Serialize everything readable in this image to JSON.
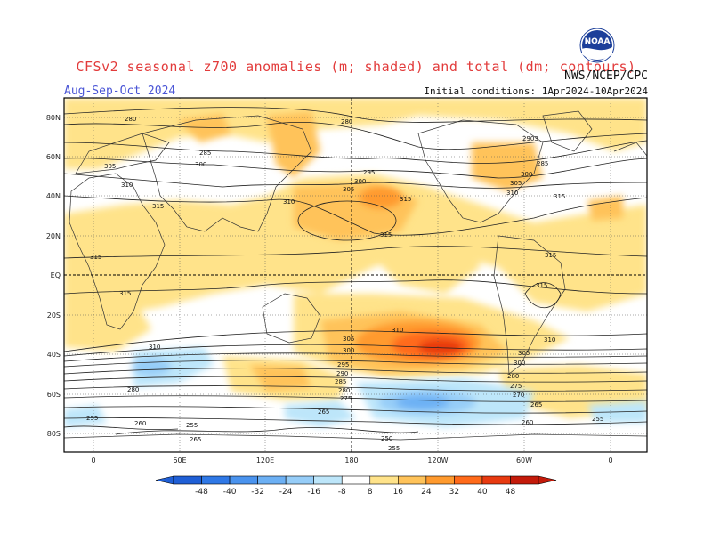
{
  "title": "CFSv2 seasonal z700 anomalies (m; shaded) and total (dm; contours)",
  "period": "Aug-Sep-Oct 2024",
  "initial_conditions": "Initial conditions: 1Apr2024-10Apr2024",
  "agency": "NWS/NCEP/CPC",
  "logo_text": "NOAA",
  "lat_labels": [
    "80N",
    "60N",
    "40N",
    "20N",
    "EQ",
    "20S",
    "40S",
    "60S",
    "80S"
  ],
  "lon_labels": [
    "0",
    "60E",
    "120E",
    "180",
    "120W",
    "60W",
    "0"
  ],
  "colorbar": {
    "ticks": [
      "-48",
      "-40",
      "-32",
      "-24",
      "-16",
      "-8",
      "8",
      "16",
      "24",
      "32",
      "40",
      "48"
    ],
    "colors": [
      "#1f5fd6",
      "#2f78e6",
      "#4a93ee",
      "#6cb0f4",
      "#96cdf8",
      "#bde6fa",
      "#ffffff",
      "#ffe38a",
      "#ffc35a",
      "#ff9a2e",
      "#ff6a1a",
      "#e83a10",
      "#c41a0a"
    ]
  },
  "contour_labels": [
    "280",
    "285",
    "290",
    "295",
    "300",
    "305",
    "310",
    "315",
    "250",
    "255",
    "260",
    "265",
    "270",
    "275"
  ]
}
